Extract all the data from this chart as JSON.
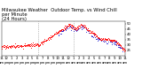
{
  "title": "Milwaukee Weather  Outdoor Temp. vs Wind Chill\nper Minute\n(24 Hours)",
  "bg_color": "#ffffff",
  "plot_bg": "#ffffff",
  "temp_color": "#ff0000",
  "wind_color": "#0000cc",
  "ylim": [
    20,
    52
  ],
  "yticks": [
    25,
    30,
    35,
    40,
    45,
    50
  ],
  "vlines_x": [
    0.295,
    0.585
  ],
  "title_fontsize": 3.8,
  "tick_fontsize": 2.8,
  "n_points": 360,
  "seed": 17
}
